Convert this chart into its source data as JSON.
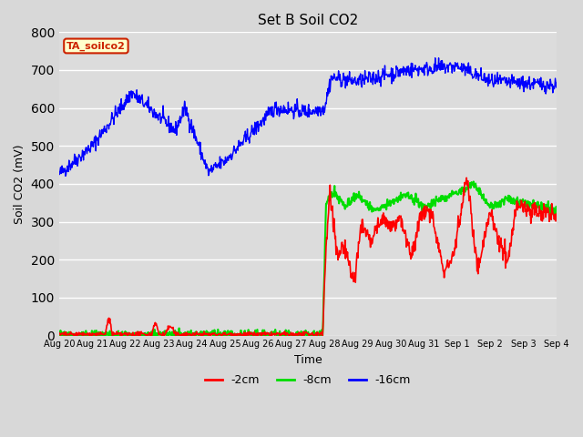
{
  "title": "Set B Soil CO2",
  "ylabel": "Soil CO2 (mV)",
  "xlabel": "Time",
  "ylim": [
    0,
    800
  ],
  "yticks": [
    0,
    100,
    200,
    300,
    400,
    500,
    600,
    700,
    800
  ],
  "fig_facecolor": "#d8d8d8",
  "plot_facecolor": "#dcdcdc",
  "label_box_text": "TA_soilco2",
  "label_box_facecolor": "#ffffcc",
  "label_box_edgecolor": "#cc2200",
  "legend_labels": [
    "-2cm",
    "-8cm",
    "-16cm"
  ],
  "legend_colors": [
    "#ff0000",
    "#00dd00",
    "#0000ff"
  ],
  "tick_labels": [
    "Aug 20",
    "Aug 21",
    "Aug 22",
    "Aug 23",
    "Aug 24",
    "Aug 25",
    "Aug 26",
    "Aug 27",
    "Aug 28",
    "Aug 29",
    "Aug 30",
    "Aug 31",
    "Sep 1",
    "Sep 2",
    "Sep 3",
    "Sep 4"
  ]
}
